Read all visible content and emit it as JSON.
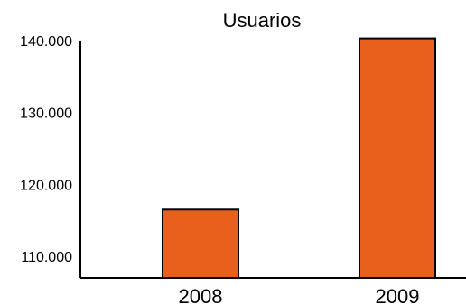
{
  "chart_data": {
    "type": "bar",
    "title": "Usuarios",
    "xlabel": "",
    "ylabel": "",
    "categories": [
      "2008",
      "2009"
    ],
    "values": [
      116500,
      140300
    ],
    "ylim": [
      107000,
      140500
    ],
    "yticks": [
      {
        "value": 110000,
        "label": "110.000"
      },
      {
        "value": 120000,
        "label": "120.000"
      },
      {
        "value": 130000,
        "label": "130.000"
      },
      {
        "value": 140000,
        "label": "140.000"
      }
    ],
    "bar_color": "#E8601C",
    "bar_outline_color": "#000000",
    "grid": false,
    "legend": "none"
  }
}
